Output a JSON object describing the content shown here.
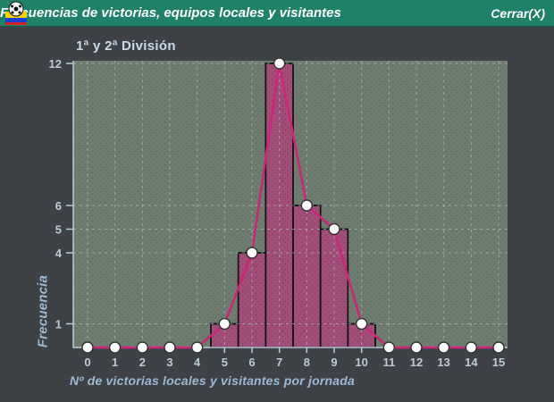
{
  "window": {
    "title": "Frecuencias de victorias, equipos locales y visitantes",
    "close_label": "Cerrar(X)",
    "icon": "soccer-ball-flag-icon"
  },
  "colors": {
    "titlebar_bg": "#1e8168",
    "title_text": "#ffffff",
    "window_bg": "#3e4246",
    "plot_bg": "#6f7d70",
    "plot_bg_dot": "#5d6c5f",
    "bar_fill": "#a14e79",
    "bar_fill_dot": "#8a3f66",
    "bar_border": "#101010",
    "line": "#cf2579",
    "marker_fill": "#ffffff",
    "marker_stroke": "#333333",
    "grid": "#a9bfc9",
    "axis": "#b9cdd6",
    "tick_label": "#bccbd5",
    "axis_title": "#9db8d2",
    "subtitle": "#c9d9e8",
    "flag_yellow": "#f5d300",
    "flag_blue": "#1a3fd4",
    "flag_red": "#d42222"
  },
  "chart_data": {
    "type": "bar",
    "subtype": "histogram-with-line-overlay",
    "title": "1ª y 2ª División",
    "xlabel": "Nº de victorias locales y visitantes por jornada",
    "ylabel": "Frecuencia",
    "categories": [
      0,
      1,
      2,
      3,
      4,
      5,
      6,
      7,
      8,
      9,
      10,
      11,
      12,
      13,
      14,
      15
    ],
    "series": [
      {
        "name": "frecuencia",
        "values": [
          0,
          0,
          0,
          0,
          0,
          1,
          4,
          12,
          6,
          5,
          1,
          0,
          0,
          0,
          0,
          0
        ]
      }
    ],
    "yticks": [
      1,
      4,
      5,
      6,
      12
    ],
    "ylim": [
      0,
      12.1
    ],
    "xlim": [
      -0.52,
      15.33
    ],
    "grid": true,
    "grid_style": "dashed",
    "legend": false,
    "bar_bin_width": 1,
    "markers_on_every_category": true
  }
}
